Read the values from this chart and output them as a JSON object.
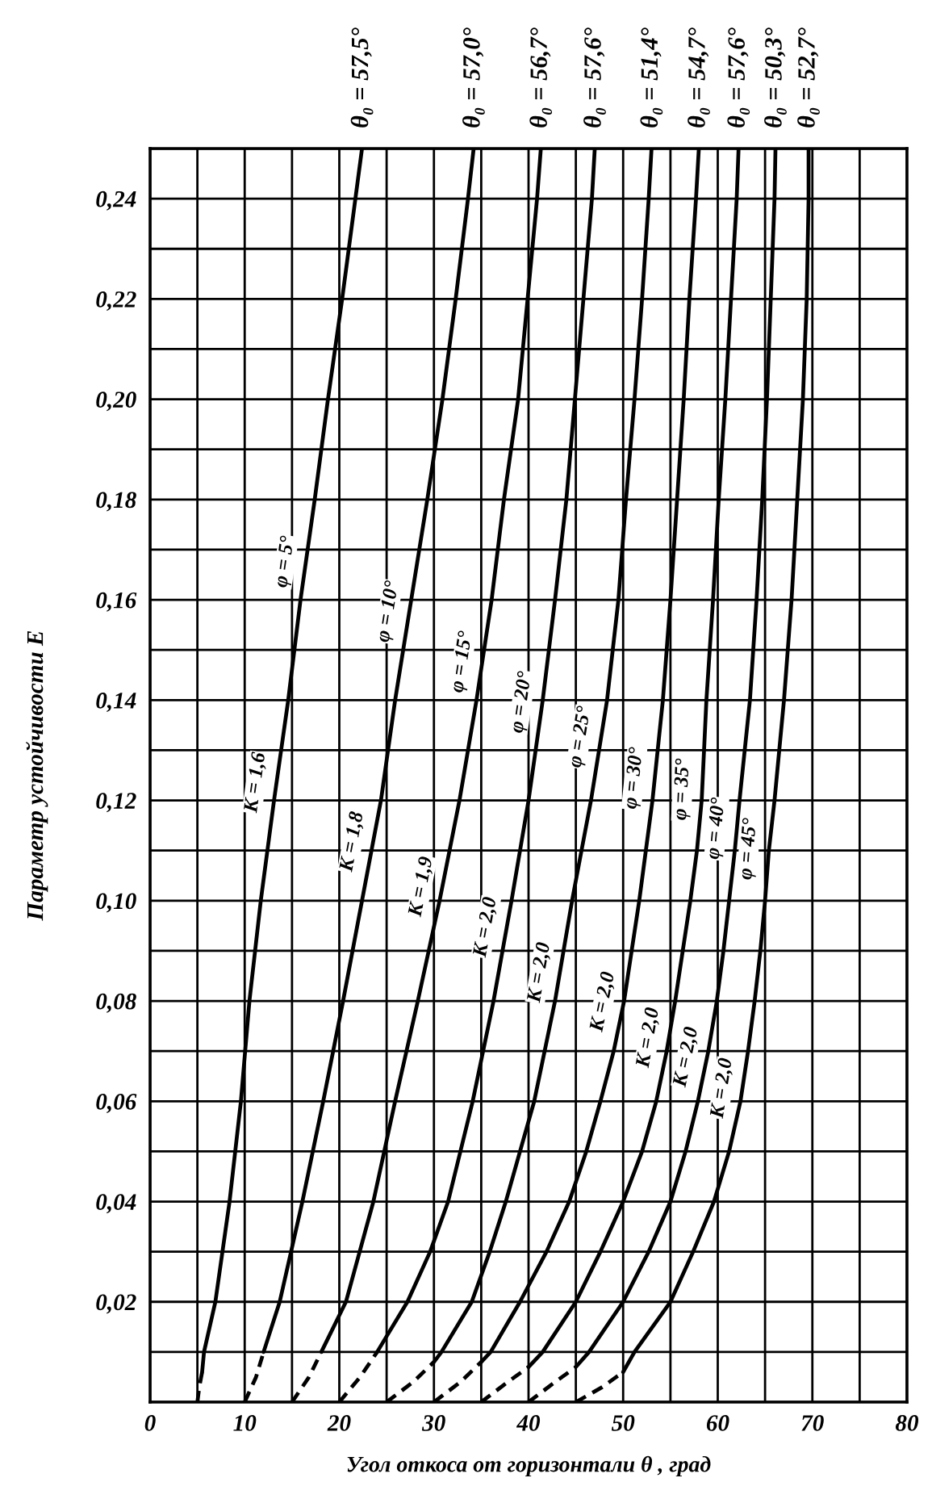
{
  "chart_data": {
    "type": "line",
    "xlabel": "Угол откоса от горизонтали θ , град",
    "ylabel": "Параметр устойчивости E",
    "xlim": [
      0,
      80
    ],
    "ylim": [
      0,
      0.25
    ],
    "xticks": [
      0,
      {
        "value": 5,
        "label": null
      },
      10,
      {
        "value": 15,
        "label": null
      },
      20,
      {
        "value": 25,
        "label": null
      },
      30,
      {
        "value": 35,
        "label": null
      },
      40,
      {
        "value": 45,
        "label": null
      },
      50,
      {
        "value": 55,
        "label": null
      },
      60,
      {
        "value": 65,
        "label": null
      },
      70,
      {
        "value": 75,
        "label": null
      },
      80
    ],
    "yticks": [
      {
        "value": 0,
        "label": null
      },
      {
        "value": 0.01,
        "label": null
      },
      {
        "value": 0.02,
        "label": "0,02"
      },
      {
        "value": 0.03,
        "label": null
      },
      {
        "value": 0.04,
        "label": "0,04"
      },
      {
        "value": 0.05,
        "label": null
      },
      {
        "value": 0.06,
        "label": "0,06"
      },
      {
        "value": 0.07,
        "label": null
      },
      {
        "value": 0.08,
        "label": "0,08"
      },
      {
        "value": 0.09,
        "label": null
      },
      {
        "value": 0.1,
        "label": "0,10"
      },
      {
        "value": 0.11,
        "label": null
      },
      {
        "value": 0.12,
        "label": "0,12"
      },
      {
        "value": 0.13,
        "label": null
      },
      {
        "value": 0.14,
        "label": "0,14"
      },
      {
        "value": 0.15,
        "label": null
      },
      {
        "value": 0.16,
        "label": "0,16"
      },
      {
        "value": 0.17,
        "label": null
      },
      {
        "value": 0.18,
        "label": "0,18"
      },
      {
        "value": 0.19,
        "label": null
      },
      {
        "value": 0.2,
        "label": "0,20"
      },
      {
        "value": 0.21,
        "label": null
      },
      {
        "value": 0.22,
        "label": "0,22"
      },
      {
        "value": 0.23,
        "label": null
      },
      {
        "value": 0.24,
        "label": "0,24"
      },
      {
        "value": 0.25,
        "label": null
      }
    ],
    "grid": true,
    "series": [
      {
        "color": "#000000",
        "line_style": "dashed",
        "x": [
          5,
          5.2,
          5.5
        ],
        "values": [
          0,
          0.003,
          0.006
        ]
      },
      {
        "color": "#000000",
        "line_style": "solid",
        "x": [
          5.5,
          5.7,
          6.9,
          8.4,
          9.6,
          10.5,
          11.7,
          13.1,
          14.6,
          15.9,
          17.4,
          18.8,
          20.3,
          21.7,
          22.4
        ],
        "values": [
          0.006,
          0.01,
          0.02,
          0.04,
          0.06,
          0.08,
          0.1,
          0.12,
          0.14,
          0.16,
          0.18,
          0.2,
          0.22,
          0.24,
          0.25
        ]
      },
      {
        "color": "#000000",
        "line_style": "dashed",
        "x": [
          10,
          11.2,
          12.0
        ],
        "values": [
          0,
          0.005,
          0.01
        ]
      },
      {
        "color": "#000000",
        "line_style": "solid",
        "x": [
          12.0,
          13.7,
          16.1,
          18.3,
          20.4,
          22.4,
          24.4,
          25.9,
          27.6,
          29.3,
          30.9,
          32.3,
          33.6,
          34.2
        ],
        "values": [
          0.01,
          0.02,
          0.04,
          0.06,
          0.08,
          0.1,
          0.12,
          0.14,
          0.16,
          0.18,
          0.2,
          0.22,
          0.24,
          0.25
        ]
      },
      {
        "color": "#000000",
        "line_style": "dashed",
        "x": [
          15,
          16.8,
          18.1
        ],
        "values": [
          0,
          0.005,
          0.01
        ]
      },
      {
        "color": "#000000",
        "line_style": "solid",
        "x": [
          18.1,
          20.7,
          23.6,
          25.9,
          28.3,
          30.6,
          32.7,
          34.5,
          36.1,
          37.4,
          38.9,
          39.9,
          40.9,
          41.3
        ],
        "values": [
          0.01,
          0.02,
          0.04,
          0.06,
          0.08,
          0.1,
          0.12,
          0.14,
          0.16,
          0.18,
          0.2,
          0.22,
          0.24,
          0.25
        ]
      },
      {
        "color": "#000000",
        "line_style": "dashed",
        "x": [
          20,
          22.2,
          24.0
        ],
        "values": [
          0,
          0.005,
          0.01
        ]
      },
      {
        "color": "#000000",
        "line_style": "solid",
        "x": [
          24.0,
          27.2,
          29.6,
          31.5,
          34.1,
          36.3,
          38.2,
          40.0,
          41.5,
          42.8,
          44.0,
          44.9,
          45.8,
          46.7,
          47.0
        ],
        "values": [
          0.01,
          0.02,
          0.03,
          0.04,
          0.06,
          0.08,
          0.1,
          0.12,
          0.14,
          0.16,
          0.18,
          0.2,
          0.22,
          0.24,
          0.25
        ]
      },
      {
        "color": "#000000",
        "line_style": "dashed",
        "x": [
          25,
          27.8,
          30.0
        ],
        "values": [
          0,
          0.004,
          0.008
        ]
      },
      {
        "color": "#000000",
        "line_style": "solid",
        "x": [
          30.0,
          30.8,
          34.0,
          35.9,
          37.6,
          39.1,
          40.6,
          41.7,
          42.8,
          43.7,
          44.6,
          45.6,
          46.6,
          48.3,
          49.5,
          50.3,
          51.2,
          52.0,
          52.7,
          53.0
        ],
        "values": [
          0.008,
          0.01,
          0.02,
          0.03,
          0.04,
          0.05,
          0.06,
          0.07,
          0.08,
          0.09,
          0.1,
          0.11,
          0.12,
          0.14,
          0.16,
          0.18,
          0.2,
          0.22,
          0.24,
          0.25
        ]
      },
      {
        "color": "#000000",
        "line_style": "dashed",
        "x": [
          30,
          32.8,
          35.0
        ],
        "values": [
          0,
          0.004,
          0.008
        ]
      },
      {
        "color": "#000000",
        "line_style": "solid",
        "x": [
          35.0,
          36.0,
          39.1,
          41.9,
          44.3,
          46.1,
          47.6,
          49.0,
          50.1,
          50.9,
          51.7,
          52.4,
          53.1,
          54.2,
          55.0,
          55.7,
          56.4,
          57.0,
          57.7,
          58.0
        ],
        "values": [
          0.008,
          0.01,
          0.02,
          0.03,
          0.04,
          0.05,
          0.06,
          0.07,
          0.08,
          0.09,
          0.1,
          0.11,
          0.12,
          0.14,
          0.16,
          0.18,
          0.2,
          0.22,
          0.24,
          0.25
        ]
      },
      {
        "color": "#000000",
        "line_style": "dashed",
        "x": [
          35,
          37.8,
          40.0
        ],
        "values": [
          0,
          0.004,
          0.007
        ]
      },
      {
        "color": "#000000",
        "line_style": "solid",
        "x": [
          40.0,
          41.5,
          45.0,
          47.6,
          50.0,
          52.0,
          53.5,
          54.6,
          55.5,
          56.3,
          57.1,
          57.8,
          58.3,
          58.8,
          59.5,
          60.1,
          60.8,
          61.4,
          62.0,
          62.2
        ],
        "values": [
          0.007,
          0.01,
          0.02,
          0.03,
          0.04,
          0.05,
          0.06,
          0.07,
          0.08,
          0.09,
          0.1,
          0.11,
          0.12,
          0.14,
          0.16,
          0.18,
          0.2,
          0.22,
          0.24,
          0.25
        ]
      },
      {
        "color": "#000000",
        "line_style": "dashed",
        "x": [
          40,
          42.8,
          45.0
        ],
        "values": [
          0,
          0.004,
          0.007
        ]
      },
      {
        "color": "#000000",
        "line_style": "solid",
        "x": [
          45.0,
          46.4,
          50.0,
          52.7,
          55.0,
          56.6,
          57.9,
          59.0,
          59.9,
          60.6,
          61.2,
          61.8,
          62.3,
          63.4,
          64.1,
          64.7,
          65.2,
          65.6,
          66.0,
          66.1
        ],
        "values": [
          0.007,
          0.01,
          0.02,
          0.03,
          0.04,
          0.05,
          0.06,
          0.07,
          0.08,
          0.09,
          0.1,
          0.11,
          0.12,
          0.14,
          0.16,
          0.18,
          0.2,
          0.22,
          0.24,
          0.25
        ]
      },
      {
        "color": "#000000",
        "line_style": "dashed",
        "x": [
          45,
          47.8,
          50.0
        ],
        "values": [
          0,
          0.003,
          0.006
        ]
      },
      {
        "color": "#000000",
        "line_style": "solid",
        "x": [
          50.0,
          51.2,
          55.0,
          57.4,
          59.6,
          61.2,
          62.4,
          63.2,
          63.9,
          64.5,
          65.0,
          65.4,
          66.0,
          67.0,
          67.8,
          68.4,
          69.0,
          69.4,
          69.6,
          69.6
        ],
        "values": [
          0.006,
          0.01,
          0.02,
          0.03,
          0.04,
          0.05,
          0.06,
          0.07,
          0.08,
          0.09,
          0.1,
          0.11,
          0.12,
          0.14,
          0.16,
          0.18,
          0.2,
          0.22,
          0.24,
          0.25
        ]
      }
    ],
    "annotations": [
      {
        "text": "θ₀ = 57,5°",
        "x": 22.4,
        "y": 0.25
      },
      {
        "text": "θ₀ = 57,0°",
        "x": 34.2,
        "y": 0.25
      },
      {
        "text": "θ₀ = 56,7°",
        "x": 41.3,
        "y": 0.25
      },
      {
        "text": "θ₀ = 57,6°",
        "x": 47.0,
        "y": 0.25
      },
      {
        "text": "θ₀ = 51,4°",
        "x": 53.0,
        "y": 0.25
      },
      {
        "text": "θ₀ = 54,7°",
        "x": 58.0,
        "y": 0.25
      },
      {
        "text": "θ₀ = 57,6°",
        "x": 62.2,
        "y": 0.25
      },
      {
        "text": "θ₀ = 50,3°",
        "x": 66.1,
        "y": 0.25
      },
      {
        "text": "θ₀ = 52,7°",
        "x": 69.6,
        "y": 0.25
      },
      {
        "text": "φ = 5°",
        "x": 16.4,
        "y": 0.167
      },
      {
        "text": "φ = 10°",
        "x": 27.3,
        "y": 0.157
      },
      {
        "text": "φ = 15°",
        "x": 35.1,
        "y": 0.147
      },
      {
        "text": "φ = 20°",
        "x": 41.4,
        "y": 0.139
      },
      {
        "text": "φ = 25°",
        "x": 47.6,
        "y": 0.132
      },
      {
        "text": "φ = 30°",
        "x": 53.3,
        "y": 0.124
      },
      {
        "text": "φ = 35°",
        "x": 58.4,
        "y": 0.122
      },
      {
        "text": "φ = 40°",
        "x": 62.0,
        "y": 0.114
      },
      {
        "text": "φ = 45°",
        "x": 65.4,
        "y": 0.11
      },
      {
        "text": "K = 1,6",
        "x": 13.3,
        "y": 0.123
      },
      {
        "text": "K = 1,8",
        "x": 23.5,
        "y": 0.111
      },
      {
        "text": "K = 1,9",
        "x": 30.8,
        "y": 0.102
      },
      {
        "text": "K = 2,0",
        "x": 37.6,
        "y": 0.094
      },
      {
        "text": "K = 2,0",
        "x": 43.3,
        "y": 0.085
      },
      {
        "text": "K = 2,0",
        "x": 50.0,
        "y": 0.079
      },
      {
        "text": "K = 2,0",
        "x": 54.8,
        "y": 0.072
      },
      {
        "text": "K = 2,0",
        "x": 58.8,
        "y": 0.068
      },
      {
        "text": "K = 2,0",
        "x": 62.6,
        "y": 0.062
      }
    ]
  }
}
